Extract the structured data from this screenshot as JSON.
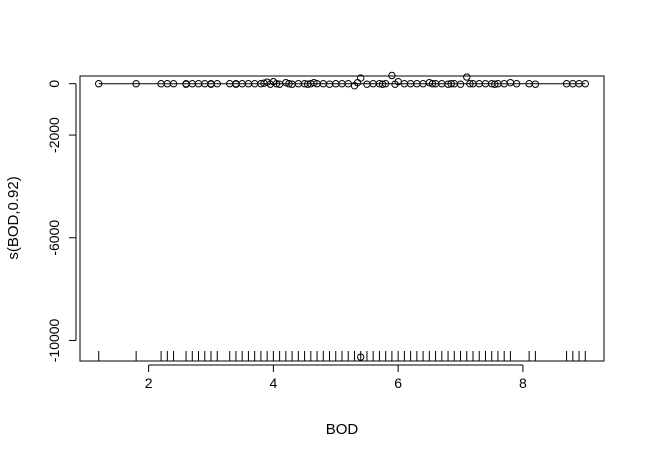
{
  "chart_data": {
    "type": "scatter",
    "xlabel": "BOD",
    "ylabel": "s(BOD,0.92)",
    "xlim": [
      0.9,
      9.3
    ],
    "ylim": [
      -10800,
      300
    ],
    "x_ticks": [
      2,
      4,
      6,
      8
    ],
    "x_tick_labels": [
      "2",
      "4",
      "6",
      "8"
    ],
    "y_ticks": [
      0,
      -2000,
      -6000,
      -10000
    ],
    "y_tick_labels": [
      "0",
      "-2000",
      "-6000",
      "-10000"
    ],
    "series": [
      {
        "kind": "points",
        "points": [
          [
            1.2,
            0
          ],
          [
            1.8,
            0
          ],
          [
            2.2,
            0
          ],
          [
            2.3,
            0
          ],
          [
            2.4,
            0
          ],
          [
            2.6,
            -20
          ],
          [
            2.6,
            0
          ],
          [
            2.7,
            0
          ],
          [
            2.8,
            0
          ],
          [
            2.9,
            0
          ],
          [
            3.0,
            -20
          ],
          [
            3.0,
            0
          ],
          [
            3.1,
            0
          ],
          [
            3.3,
            0
          ],
          [
            3.4,
            -20
          ],
          [
            3.4,
            0
          ],
          [
            3.5,
            0
          ],
          [
            3.6,
            0
          ],
          [
            3.7,
            0
          ],
          [
            3.8,
            0
          ],
          [
            3.85,
            20
          ],
          [
            3.9,
            60
          ],
          [
            3.95,
            -20
          ],
          [
            4.0,
            80
          ],
          [
            4.05,
            0
          ],
          [
            4.1,
            -20
          ],
          [
            4.2,
            40
          ],
          [
            4.25,
            0
          ],
          [
            4.3,
            -20
          ],
          [
            4.4,
            0
          ],
          [
            4.5,
            0
          ],
          [
            4.55,
            -20
          ],
          [
            4.6,
            0
          ],
          [
            4.65,
            40
          ],
          [
            4.7,
            0
          ],
          [
            4.8,
            0
          ],
          [
            4.9,
            -20
          ],
          [
            5.0,
            0
          ],
          [
            5.1,
            0
          ],
          [
            5.2,
            0
          ],
          [
            5.3,
            -80
          ],
          [
            5.35,
            40
          ],
          [
            5.4,
            220
          ],
          [
            5.5,
            -20
          ],
          [
            5.6,
            0
          ],
          [
            5.7,
            0
          ],
          [
            5.75,
            -20
          ],
          [
            5.8,
            0
          ],
          [
            5.9,
            320
          ],
          [
            5.95,
            -20
          ],
          [
            6.0,
            80
          ],
          [
            6.1,
            0
          ],
          [
            6.2,
            0
          ],
          [
            6.3,
            0
          ],
          [
            6.4,
            0
          ],
          [
            6.5,
            40
          ],
          [
            6.55,
            0
          ],
          [
            6.6,
            0
          ],
          [
            6.7,
            0
          ],
          [
            6.8,
            -20
          ],
          [
            6.85,
            0
          ],
          [
            6.9,
            0
          ],
          [
            7.0,
            -20
          ],
          [
            7.1,
            260
          ],
          [
            7.15,
            0
          ],
          [
            7.2,
            0
          ],
          [
            7.3,
            0
          ],
          [
            7.4,
            0
          ],
          [
            7.5,
            0
          ],
          [
            7.55,
            -20
          ],
          [
            7.6,
            0
          ],
          [
            7.7,
            0
          ],
          [
            7.8,
            40
          ],
          [
            7.9,
            0
          ],
          [
            8.1,
            0
          ],
          [
            8.2,
            -20
          ],
          [
            8.7,
            0
          ],
          [
            8.8,
            0
          ],
          [
            8.9,
            0
          ],
          [
            9.0,
            0
          ],
          [
            5.4,
            -10650
          ]
        ]
      },
      {
        "kind": "smooth-line",
        "points": [
          [
            1.2,
            0
          ],
          [
            9.0,
            0
          ]
        ]
      },
      {
        "kind": "rug",
        "x": [
          1.2,
          1.8,
          2.2,
          2.3,
          2.4,
          2.6,
          2.7,
          2.8,
          2.9,
          3.0,
          3.1,
          3.3,
          3.4,
          3.5,
          3.6,
          3.7,
          3.8,
          3.9,
          4.0,
          4.1,
          4.2,
          4.3,
          4.4,
          4.5,
          4.6,
          4.7,
          4.8,
          4.9,
          5.0,
          5.1,
          5.2,
          5.3,
          5.4,
          5.5,
          5.6,
          5.7,
          5.8,
          5.9,
          6.0,
          6.1,
          6.2,
          6.3,
          6.4,
          6.5,
          6.6,
          6.7,
          6.8,
          6.9,
          7.0,
          7.1,
          7.2,
          7.3,
          7.4,
          7.5,
          7.6,
          7.7,
          7.8,
          8.1,
          8.2,
          8.7,
          8.8,
          8.9,
          9.0
        ]
      }
    ],
    "grid": false,
    "legend": "none"
  }
}
